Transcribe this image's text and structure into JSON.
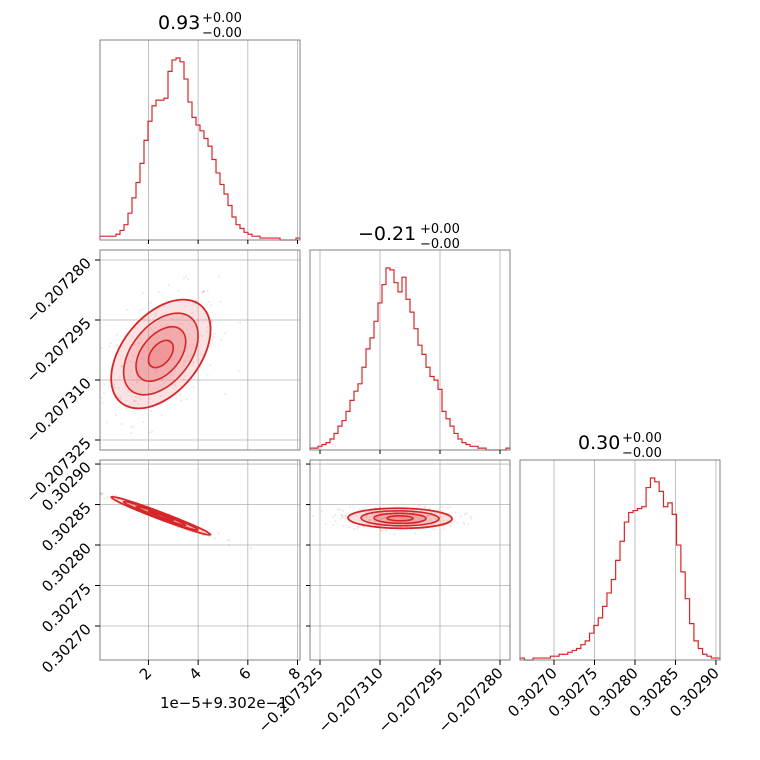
{
  "colors": {
    "accent": "#d62728",
    "accent_fill": "#ee8f92",
    "grid": "#b0b0b0",
    "axis": "#808080"
  },
  "chart_data": {
    "type": "corner",
    "titles": [
      {
        "main": "0.93",
        "sup": "+0.00",
        "sub": "−0.00"
      },
      {
        "main": "−0.21",
        "sup": "+0.00",
        "sub": "−0.00"
      },
      {
        "main": "0.30",
        "sup": "+0.00",
        "sub": "−0.00"
      }
    ],
    "param0": {
      "offset_label": "1e−5+9.302e−1",
      "xlim": [
        0.05,
        8.1
      ],
      "ticks": [
        2,
        4,
        6,
        8
      ],
      "tick_labels": [
        "2",
        "4",
        "6",
        "8"
      ]
    },
    "param1": {
      "lim": [
        -0.2073275,
        -0.2072775
      ],
      "ticks": [
        -0.207325,
        -0.20731,
        -0.207295,
        -0.20728
      ],
      "tick_labels": [
        "−0.207325",
        "−0.207310",
        "−0.207295",
        "−0.207280"
      ]
    },
    "param2": {
      "lim": [
        0.302658,
        0.302905
      ],
      "ticks": [
        0.3027,
        0.30275,
        0.3028,
        0.30285,
        0.3029
      ],
      "tick_labels": [
        "0.30270",
        "0.30275",
        "0.30280",
        "0.30285",
        "0.30290"
      ]
    },
    "histograms": [
      {
        "name": "hist-param0",
        "x_start": 0.05,
        "x_end": 8.1,
        "counts": [
          2,
          2,
          2,
          2,
          3,
          5,
          8,
          14,
          22,
          30,
          40,
          52,
          62,
          70,
          73,
          73,
          74,
          88,
          94,
          95,
          93,
          84,
          72,
          64,
          60,
          57,
          53,
          49,
          42,
          35,
          29,
          24,
          18,
          12,
          8,
          6,
          4,
          3,
          2,
          2,
          1,
          1,
          1,
          1,
          1,
          0,
          0,
          0,
          0,
          1
        ]
      },
      {
        "name": "hist-param1",
        "x_start": -0.2073275,
        "x_end": -0.2072775,
        "counts": [
          1,
          1,
          2,
          3,
          4,
          6,
          9,
          13,
          16,
          21,
          27,
          32,
          36,
          45,
          55,
          61,
          70,
          80,
          90,
          99,
          98,
          91,
          86,
          94,
          82,
          75,
          66,
          57,
          52,
          45,
          40,
          38,
          33,
          21,
          17,
          13,
          9,
          6,
          4,
          3,
          2,
          2,
          1,
          1,
          0,
          0,
          0,
          0,
          0,
          1
        ]
      },
      {
        "name": "hist-param2",
        "x_start": 0.302658,
        "x_end": 0.302905,
        "counts": [
          1,
          0,
          0,
          1,
          1,
          1,
          1,
          2,
          2,
          3,
          3,
          4,
          5,
          6,
          8,
          10,
          14,
          18,
          22,
          28,
          35,
          42,
          52,
          62,
          72,
          77,
          78,
          79,
          80,
          90,
          95,
          93,
          88,
          80,
          82,
          76,
          60,
          46,
          32,
          19,
          10,
          6,
          3,
          2,
          1,
          1
        ]
      }
    ],
    "blobs": [
      {
        "name": "blob-p1-vs-p0",
        "center": [
          2.5,
          -0.2073035
        ],
        "spread": [
          1.0,
          6.8e-06
        ],
        "corr": 0.45
      },
      {
        "name": "blob-p2-vs-p0",
        "center": [
          2.5,
          0.302836
        ],
        "spread": [
          1.0,
          1.18e-05
        ],
        "corr": -0.98
      },
      {
        "name": "blob-p2-vs-p1",
        "center": [
          -0.207305,
          0.302833
        ],
        "spread": [
          6.5e-06,
          6.2e-06
        ],
        "corr": -0.05
      }
    ]
  }
}
